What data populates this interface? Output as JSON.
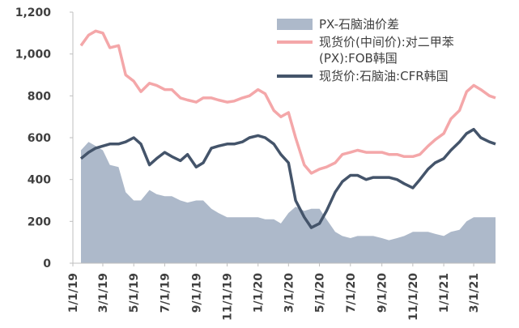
{
  "chart_data": {
    "type": "line",
    "x": [
      "1/17/19",
      "2/1/19",
      "2/15/19",
      "3/1/19",
      "3/15/19",
      "4/1/19",
      "4/15/19",
      "5/1/19",
      "5/15/19",
      "6/1/19",
      "6/15/19",
      "7/1/19",
      "7/15/19",
      "8/1/19",
      "8/15/19",
      "9/1/19",
      "9/15/19",
      "10/1/19",
      "10/15/19",
      "11/1/19",
      "11/15/19",
      "12/1/19",
      "12/15/19",
      "1/1/20",
      "1/15/20",
      "2/1/20",
      "2/15/20",
      "3/1/20",
      "3/15/20",
      "4/1/20",
      "4/15/20",
      "5/1/20",
      "5/15/20",
      "6/1/20",
      "6/15/20",
      "7/1/20",
      "7/15/20",
      "8/1/20",
      "8/15/20",
      "9/1/20",
      "9/15/20",
      "10/1/20",
      "10/15/20",
      "11/1/20",
      "11/15/20",
      "12/1/20",
      "12/15/20",
      "1/1/21",
      "1/15/21",
      "2/1/21",
      "2/15/21",
      "3/1/21",
      "3/15/21",
      "4/1/21",
      "4/13/21"
    ],
    "series": [
      {
        "name": "PX-石脑油价差",
        "kind": "area",
        "color": "#adb9ca",
        "values": [
          540,
          580,
          560,
          540,
          470,
          460,
          340,
          300,
          300,
          350,
          330,
          320,
          320,
          300,
          290,
          300,
          300,
          260,
          240,
          220,
          220,
          220,
          220,
          220,
          210,
          210,
          190,
          240,
          270,
          250,
          260,
          260,
          210,
          150,
          130,
          120,
          130,
          130,
          130,
          120,
          110,
          120,
          130,
          150,
          150,
          150,
          140,
          130,
          150,
          160,
          200,
          220,
          220,
          220,
          220
        ]
      },
      {
        "name": "现货价(中间价):对二甲苯(PX):FOB韩国",
        "kind": "line",
        "color": "#f4a7a9",
        "values": [
          1040,
          1090,
          1110,
          1100,
          1030,
          1040,
          900,
          870,
          820,
          860,
          850,
          830,
          830,
          790,
          780,
          770,
          790,
          790,
          780,
          770,
          775,
          790,
          800,
          830,
          810,
          730,
          700,
          720,
          600,
          470,
          430,
          450,
          460,
          480,
          520,
          530,
          540,
          530,
          530,
          530,
          520,
          520,
          510,
          510,
          520,
          560,
          590,
          620,
          690,
          730,
          820,
          850,
          830,
          800,
          790
        ]
      },
      {
        "name": "现货价:石脑油:CFR韩国",
        "kind": "line",
        "color": "#44546a",
        "values": [
          500,
          530,
          550,
          560,
          570,
          570,
          580,
          600,
          570,
          470,
          500,
          530,
          510,
          490,
          520,
          460,
          480,
          550,
          560,
          570,
          570,
          580,
          600,
          610,
          600,
          570,
          520,
          480,
          300,
          220,
          170,
          190,
          250,
          340,
          390,
          420,
          420,
          400,
          410,
          410,
          410,
          400,
          380,
          360,
          400,
          450,
          480,
          500,
          540,
          580,
          620,
          640,
          600,
          580,
          570
        ]
      }
    ],
    "xlim": [
      "1/1/19",
      "4/13/21"
    ],
    "xticks": [
      "1/1/19",
      "3/1/19",
      "5/1/19",
      "7/1/19",
      "9/1/19",
      "11/1/19",
      "1/1/20",
      "3/1/20",
      "5/1/20",
      "7/1/20",
      "9/1/20",
      "11/1/20",
      "1/1/21",
      "3/1/21"
    ],
    "ylim": [
      0,
      1200
    ],
    "yticks": [
      0,
      200,
      400,
      600,
      800,
      {
        "value": 1000,
        "label": "1,000"
      },
      {
        "value": 1200,
        "label": "1,200"
      }
    ],
    "grid": false,
    "legend": "upper right"
  }
}
